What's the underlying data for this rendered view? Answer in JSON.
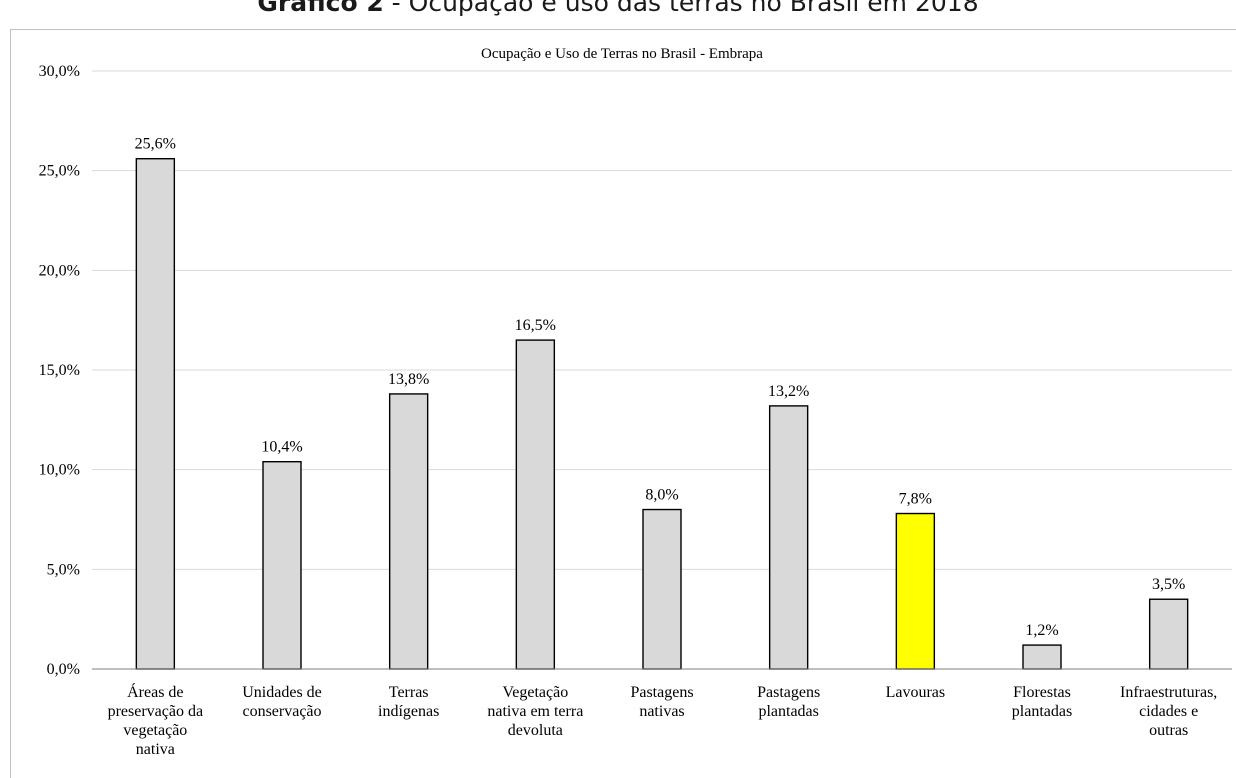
{
  "page": {
    "heading_bold": "Gráfico 2",
    "heading_rest": " - Ocupação e uso das terras no Brasil em 2018"
  },
  "chart_data": {
    "type": "bar",
    "title": "Ocupação e Uso de Terras no Brasil - Embrapa",
    "xlabel": "",
    "ylabel": "",
    "ylim": [
      0,
      30
    ],
    "y_ticks": [
      "0,0%",
      "5,0%",
      "10,0%",
      "15,0%",
      "20,0%",
      "25,0%",
      "30,0%"
    ],
    "y_tick_values": [
      0,
      5,
      10,
      15,
      20,
      25,
      30
    ],
    "grid": true,
    "legend": "none",
    "categories": [
      [
        "Áreas de",
        "preservação da",
        "vegetação",
        "nativa"
      ],
      [
        "Unidades de",
        "conservação"
      ],
      [
        "Terras",
        "indígenas"
      ],
      [
        "Vegetação",
        "nativa em terra",
        "devoluta"
      ],
      [
        "Pastagens",
        "nativas"
      ],
      [
        "Pastagens",
        "plantadas"
      ],
      [
        "Lavouras"
      ],
      [
        "Florestas",
        "plantadas"
      ],
      [
        "Infraestruturas,",
        "cidades e",
        "outras"
      ]
    ],
    "values": [
      25.6,
      10.4,
      13.8,
      16.5,
      8.0,
      13.2,
      7.8,
      1.2,
      3.5
    ],
    "data_labels": [
      "25,6%",
      "10,4%",
      "13,8%",
      "16,5%",
      "8,0%",
      "13,2%",
      "7,8%",
      "1,2%",
      "3,5%"
    ],
    "colors": {
      "default_bar": "#d9d9d9",
      "highlight_bar": "#ffff00",
      "bar_outline": "#000000",
      "grid": "#d9d9d9",
      "axis": "#7f7f7f"
    },
    "highlight_index": 6
  }
}
